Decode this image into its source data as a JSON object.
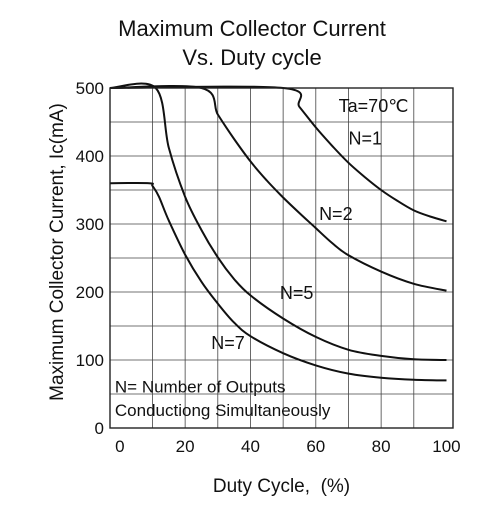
{
  "chart_data": {
    "type": "line",
    "title": "Maximum Collector Current",
    "subtitle": "Vs. Duty cycle",
    "xlabel": "Duty Cycle,  (%)",
    "ylabel": "Maximum Collector Current, Ic(mA)",
    "xlim": [
      -3,
      102
    ],
    "ylim": [
      0,
      500
    ],
    "x_ticks": [
      "0",
      "20",
      "40",
      "60",
      "80",
      "100"
    ],
    "y_ticks": [
      "0",
      "100",
      "200",
      "300",
      "400",
      "500"
    ],
    "grid": true,
    "annotations": {
      "temperature": "Ta=70℃",
      "note_line1": "N= Number of Outputs",
      "note_line2": "Conductiong Simultaneously"
    },
    "series": [
      {
        "name": "N=1",
        "x": [
          -3,
          50,
          55,
          60,
          65,
          70,
          75,
          80,
          85,
          90,
          95,
          100
        ],
        "y": [
          500,
          500,
          472,
          442,
          415,
          390,
          369,
          350,
          334,
          320,
          311,
          304
        ]
      },
      {
        "name": "N=2",
        "x": [
          -3,
          25,
          30,
          35,
          40,
          45,
          50,
          55,
          60,
          65,
          70,
          80,
          90,
          100
        ],
        "y": [
          500,
          500,
          461,
          425,
          392,
          364,
          339,
          316,
          294,
          272,
          254,
          230,
          212,
          202
        ]
      },
      {
        "name": "N=5",
        "x": [
          -3,
          11,
          15,
          20,
          25,
          30,
          35,
          40,
          50,
          60,
          70,
          80,
          90,
          100
        ],
        "y": [
          500,
          500,
          412,
          340,
          291,
          251,
          219,
          195,
          161,
          134,
          115,
          106,
          101,
          100
        ]
      },
      {
        "name": "N=7",
        "x": [
          -3,
          9,
          10,
          12,
          15,
          20,
          25,
          30,
          35,
          40,
          50,
          60,
          70,
          80,
          90,
          100
        ],
        "y": [
          360,
          360,
          356,
          340,
          305,
          255,
          215,
          183,
          155,
          135,
          110,
          92,
          80,
          74,
          71,
          70
        ]
      }
    ],
    "series_labels": [
      {
        "text": "N=1",
        "x": 70,
        "y": 417
      },
      {
        "text": "N=2",
        "x": 61,
        "y": 306
      },
      {
        "text": "N=5",
        "x": 49,
        "y": 190
      },
      {
        "text": "N=7",
        "x": 28,
        "y": 116
      }
    ]
  }
}
